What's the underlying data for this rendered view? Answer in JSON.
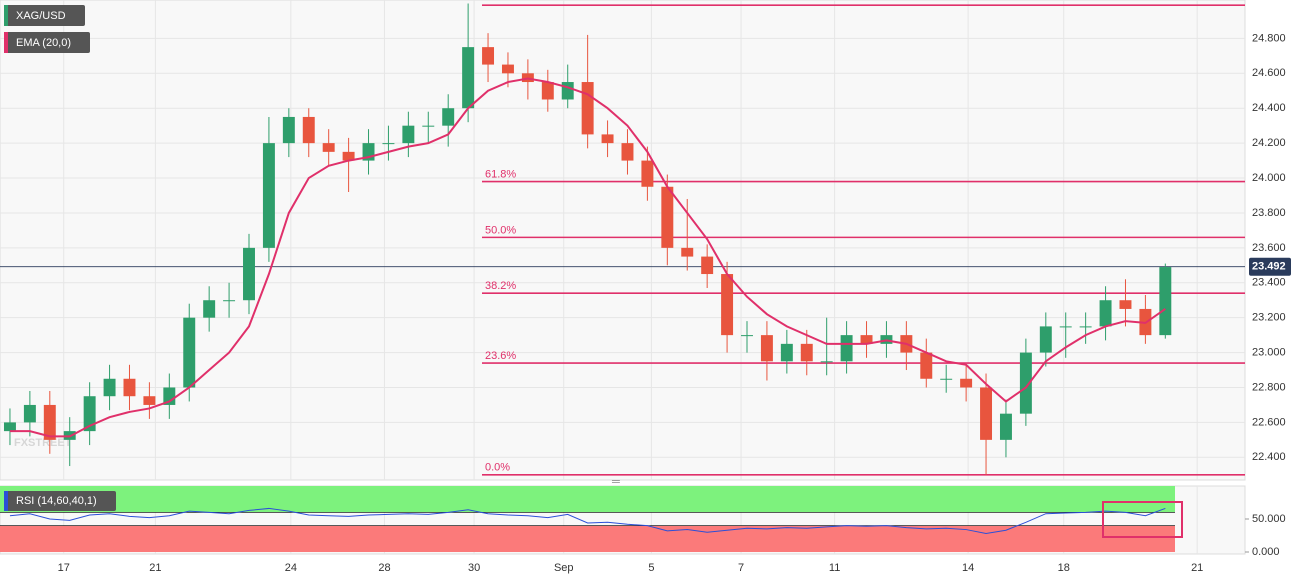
{
  "chart_data": {
    "type": "candlestick",
    "symbol": "XAG/USD",
    "watermark": "FXSTREET",
    "up_color": "#2e9e6b",
    "down_color": "#e8553e",
    "candles": {
      "open": [
        22.55,
        22.6,
        22.7,
        22.5,
        22.55,
        22.75,
        22.85,
        22.75,
        22.7,
        22.8,
        23.2,
        23.3,
        23.3,
        23.6,
        24.2,
        24.35,
        24.2,
        24.15,
        24.1,
        24.2,
        24.2,
        24.3,
        24.3,
        24.4,
        24.75,
        24.65,
        24.6,
        24.55,
        24.45,
        24.55,
        24.25,
        24.2,
        24.1,
        23.95,
        23.6,
        23.55,
        23.45,
        23.1,
        23.1,
        22.95,
        23.05,
        22.95,
        22.95,
        23.1,
        23.05,
        23.1,
        23.0,
        22.85,
        22.85,
        22.8,
        22.5,
        22.65,
        23.0,
        23.15,
        23.15,
        23.15,
        23.3,
        23.25,
        23.1
      ],
      "high": [
        22.68,
        22.78,
        22.78,
        22.63,
        22.83,
        22.93,
        22.93,
        22.83,
        22.88,
        23.28,
        23.38,
        23.4,
        23.68,
        24.35,
        24.4,
        24.4,
        24.28,
        24.23,
        24.28,
        24.3,
        24.38,
        24.38,
        24.48,
        25.0,
        24.83,
        24.72,
        24.68,
        24.62,
        24.65,
        24.82,
        24.33,
        24.28,
        24.18,
        24.02,
        23.88,
        23.62,
        23.52,
        23.18,
        23.18,
        23.13,
        23.13,
        23.2,
        23.18,
        23.18,
        23.18,
        23.18,
        23.08,
        22.93,
        22.93,
        22.88,
        22.73,
        23.08,
        23.23,
        23.23,
        23.23,
        23.38,
        23.42,
        23.33,
        23.51
      ],
      "low": [
        22.47,
        22.52,
        22.42,
        22.35,
        22.47,
        22.67,
        22.67,
        22.62,
        22.62,
        22.72,
        23.12,
        23.2,
        23.22,
        23.52,
        24.12,
        24.12,
        24.07,
        23.92,
        24.02,
        24.1,
        24.12,
        24.2,
        24.18,
        24.32,
        24.55,
        24.52,
        24.45,
        24.38,
        24.4,
        24.17,
        24.12,
        24.02,
        23.87,
        23.5,
        23.47,
        23.37,
        23.0,
        23.0,
        22.84,
        22.88,
        22.87,
        22.87,
        22.88,
        22.97,
        22.97,
        22.9,
        22.8,
        22.77,
        22.72,
        22.3,
        22.4,
        22.58,
        22.92,
        22.97,
        23.05,
        23.07,
        23.15,
        23.05,
        23.08
      ],
      "close": [
        22.6,
        22.7,
        22.5,
        22.55,
        22.75,
        22.85,
        22.75,
        22.7,
        22.8,
        23.2,
        23.3,
        23.3,
        23.6,
        24.2,
        24.35,
        24.2,
        24.15,
        24.1,
        24.2,
        24.2,
        24.3,
        24.3,
        24.4,
        24.75,
        24.65,
        24.6,
        24.55,
        24.45,
        24.55,
        24.25,
        24.2,
        24.1,
        23.95,
        23.6,
        23.55,
        23.45,
        23.1,
        23.1,
        22.95,
        23.05,
        22.95,
        22.95,
        23.1,
        23.05,
        23.1,
        23.0,
        22.85,
        22.85,
        22.8,
        22.5,
        22.65,
        23.0,
        23.15,
        23.15,
        23.15,
        23.3,
        23.25,
        23.1,
        23.49
      ]
    },
    "ema": {
      "name": "EMA (20,0)",
      "color": "#e0306a",
      "values": [
        22.55,
        22.55,
        22.52,
        22.52,
        22.58,
        22.63,
        22.66,
        22.68,
        22.72,
        22.8,
        22.9,
        23.0,
        23.15,
        23.45,
        23.8,
        24.0,
        24.07,
        24.1,
        24.12,
        24.15,
        24.18,
        24.2,
        24.25,
        24.4,
        24.5,
        24.55,
        24.57,
        24.55,
        24.52,
        24.48,
        24.4,
        24.3,
        24.15,
        23.95,
        23.8,
        23.65,
        23.45,
        23.32,
        23.22,
        23.15,
        23.1,
        23.05,
        23.05,
        23.05,
        23.07,
        23.05,
        23.0,
        22.95,
        22.93,
        22.82,
        22.72,
        22.8,
        22.95,
        23.03,
        23.1,
        23.15,
        23.18,
        23.17,
        23.25
      ]
    },
    "fib_color": "#e0306a",
    "fib_levels": [
      {
        "value": 24.99,
        "label": null
      },
      {
        "value": 23.98,
        "label": "61.8%"
      },
      {
        "value": 23.66,
        "label": "50.0%"
      },
      {
        "value": 23.34,
        "label": "38.2%"
      },
      {
        "value": 22.94,
        "label": "23.6%"
      },
      {
        "value": 22.3,
        "label": "0.0%"
      }
    ],
    "last_price": 23.492,
    "xlim": [
      -0.5,
      62
    ],
    "xticks": [
      {
        "value": 2.7,
        "label": "17"
      },
      {
        "value": 7.3,
        "label": "21"
      },
      {
        "value": 14.1,
        "label": "24"
      },
      {
        "value": 18.8,
        "label": "28"
      },
      {
        "value": 23.3,
        "label": "30"
      },
      {
        "value": 27.8,
        "label": "Sep"
      },
      {
        "value": 32.2,
        "label": "5"
      },
      {
        "value": 36.7,
        "label": "7"
      },
      {
        "value": 41.4,
        "label": "11"
      },
      {
        "value": 48.1,
        "label": "14"
      },
      {
        "value": 52.9,
        "label": "18"
      },
      {
        "value": 59.6,
        "label": "21"
      }
    ],
    "ylim": [
      22.27,
      25.02
    ],
    "yticks": [
      {
        "value": 22.4,
        "label": "22.400"
      },
      {
        "value": 22.6,
        "label": "22.600"
      },
      {
        "value": 22.8,
        "label": "22.800"
      },
      {
        "value": 23.0,
        "label": "23.000"
      },
      {
        "value": 23.2,
        "label": "23.200"
      },
      {
        "value": 23.4,
        "label": "23.400"
      },
      {
        "value": 23.6,
        "label": "23.600"
      },
      {
        "value": 23.8,
        "label": "23.800"
      },
      {
        "value": 24.0,
        "label": "24.000"
      },
      {
        "value": 24.2,
        "label": "24.200"
      },
      {
        "value": 24.4,
        "label": "24.400"
      },
      {
        "value": 24.6,
        "label": "24.600"
      },
      {
        "value": 24.8,
        "label": "24.800"
      }
    ],
    "grid": true,
    "rsi": {
      "name": "RSI (14,60,40,1)",
      "color": "#2b4fd8",
      "values": [
        55,
        58,
        50,
        48,
        56,
        58,
        54,
        52,
        55,
        62,
        60,
        58,
        63,
        66,
        62,
        56,
        55,
        54,
        56,
        57,
        58,
        57,
        60,
        64,
        58,
        56,
        55,
        52,
        57,
        44,
        45,
        42,
        40,
        32,
        34,
        30,
        33,
        36,
        35,
        37,
        36,
        38,
        40,
        39,
        40,
        37,
        35,
        36,
        34,
        28,
        33,
        45,
        58,
        59,
        60,
        62,
        60,
        55,
        66
      ],
      "upper": 60,
      "lower": 40,
      "upper_color": "#7df27d",
      "lower_color": "#fb7a7a",
      "ylim": [
        0,
        100
      ],
      "yticks": [
        {
          "value": 0,
          "label": "0.000"
        },
        {
          "value": 50,
          "label": "50.000"
        }
      ]
    }
  }
}
